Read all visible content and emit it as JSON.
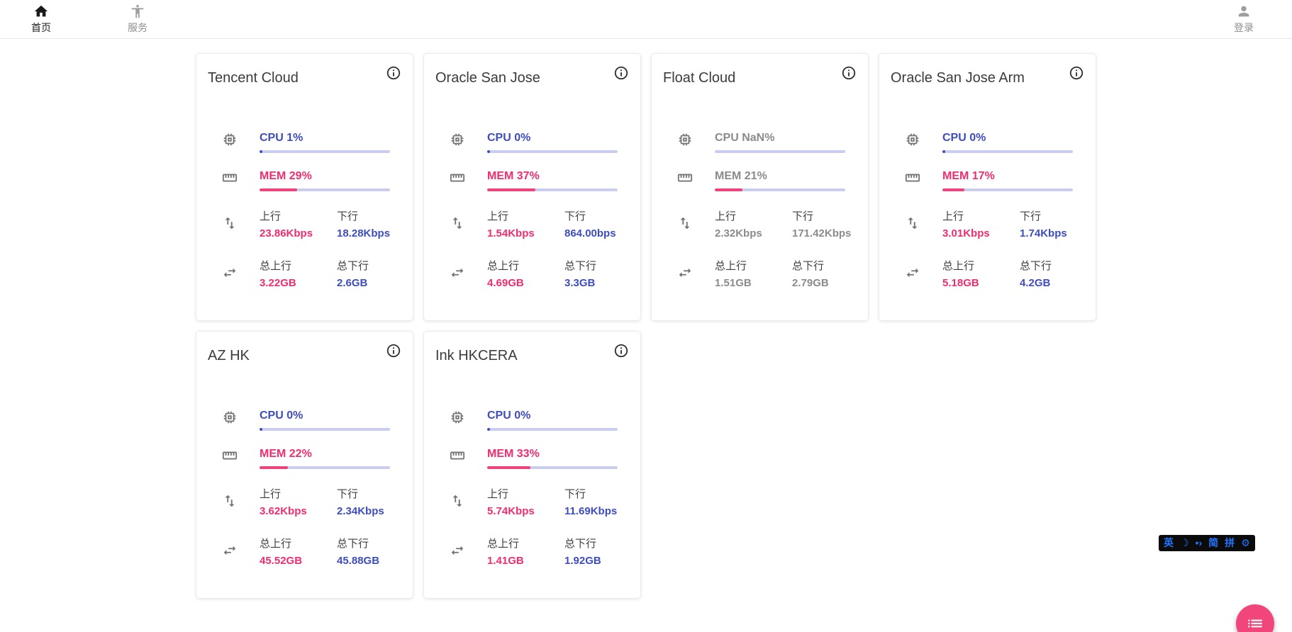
{
  "nav": {
    "home": {
      "label": "首页"
    },
    "services": {
      "label": "服务"
    },
    "login": {
      "label": "登录"
    }
  },
  "labels": {
    "up": "上行",
    "down": "下行",
    "total_up": "总上行",
    "total_down": "总下行"
  },
  "colors": {
    "accent_up_pink": "#F02D70",
    "accent_down_blue": "#3E4DBC",
    "bar_track": "#C9CDEE",
    "mem_bar_fill": "#F0437C",
    "fab_pink": "#F0467C",
    "muted_gray": "#8B8B8B"
  },
  "servers": [
    {
      "name": "Tencent Cloud",
      "cpu": "CPU 1%",
      "cpu_pct": 1,
      "mem": "MEM 29%",
      "mem_pct": 29,
      "up": "23.86Kbps",
      "down": "18.28Kbps",
      "total_up": "3.22GB",
      "total_down": "2.6GB",
      "muted": false
    },
    {
      "name": "Oracle San Jose",
      "cpu": "CPU 0%",
      "cpu_pct": 0,
      "mem": "MEM 37%",
      "mem_pct": 37,
      "up": "1.54Kbps",
      "down": "864.00bps",
      "total_up": "4.69GB",
      "total_down": "3.3GB",
      "muted": false
    },
    {
      "name": "Float Cloud",
      "cpu": "CPU NaN%",
      "cpu_pct": null,
      "mem": "MEM 21%",
      "mem_pct": 21,
      "up": "2.32Kbps",
      "down": "171.42Kbps",
      "total_up": "1.51GB",
      "total_down": "2.79GB",
      "muted": true
    },
    {
      "name": "Oracle San Jose Arm",
      "cpu": "CPU 0%",
      "cpu_pct": 0,
      "mem": "MEM 17%",
      "mem_pct": 17,
      "up": "3.01Kbps",
      "down": "1.74Kbps",
      "total_up": "5.18GB",
      "total_down": "4.2GB",
      "muted": false
    },
    {
      "name": "AZ HK",
      "cpu": "CPU 0%",
      "cpu_pct": 0,
      "mem": "MEM 22%",
      "mem_pct": 22,
      "up": "3.62Kbps",
      "down": "2.34Kbps",
      "total_up": "45.52GB",
      "total_down": "45.88GB",
      "muted": false
    },
    {
      "name": "Ink HKCERA",
      "cpu": "CPU 0%",
      "cpu_pct": 0,
      "mem": "MEM 33%",
      "mem_pct": 33,
      "up": "5.74Kbps",
      "down": "11.69Kbps",
      "total_up": "1.41GB",
      "total_down": "1.92GB",
      "muted": false
    }
  ],
  "ime": {
    "lang": "英",
    "punct": "•›",
    "moon": "☽",
    "simplified": "简",
    "pinyin": "拼",
    "gear": "⚙"
  }
}
